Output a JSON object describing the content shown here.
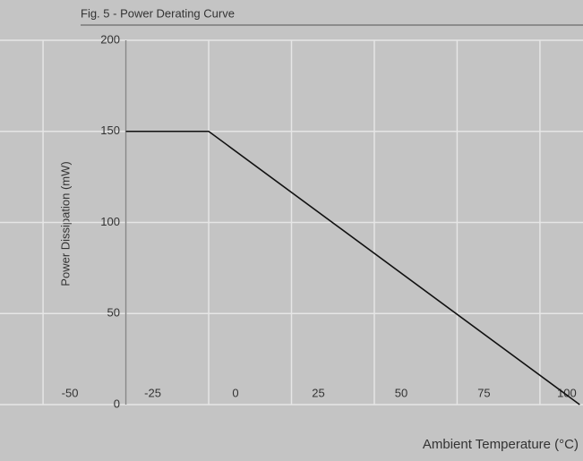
{
  "chart_data": {
    "type": "line",
    "title": "Fig. 5 - Power Derating Curve",
    "xlabel": "Ambient Temperature (°C)",
    "ylabel": "Power Dissipation (mW)",
    "x": [
      -25,
      0,
      112
    ],
    "series": [
      {
        "name": "Power Dissipation",
        "color": "#111111",
        "values": [
          150,
          150,
          0
        ]
      }
    ],
    "xlim": [
      -63,
      113
    ],
    "xticks": [
      -50,
      -25,
      0,
      25,
      50,
      75,
      100
    ],
    "ylim": [
      0,
      200
    ],
    "yticks": [
      0,
      50,
      100,
      150,
      200
    ],
    "grid": true
  }
}
